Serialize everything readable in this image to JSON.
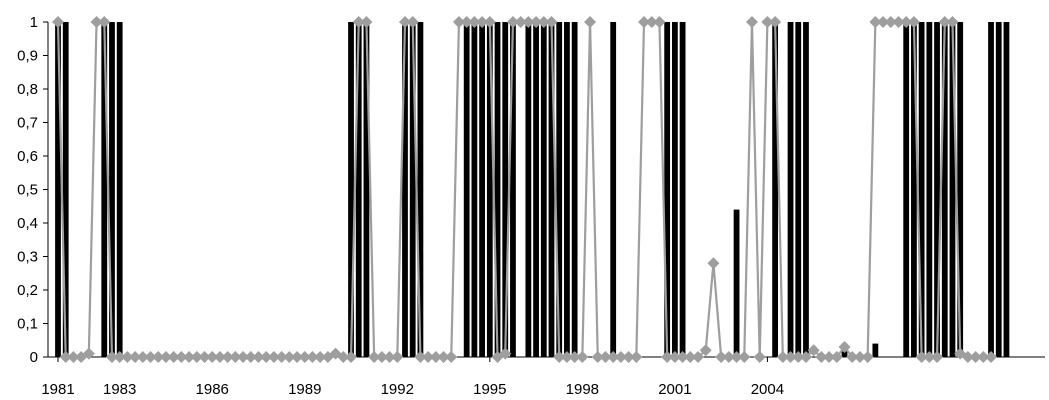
{
  "chart_data": {
    "type": "bar",
    "title": "",
    "xlabel": "",
    "ylabel": "",
    "ylim": [
      0,
      1
    ],
    "y_ticks": [
      "0",
      "0,1",
      "0,2",
      "0,3",
      "0,4",
      "0,5",
      "0,6",
      "0,7",
      "0,8",
      "0,9",
      "1"
    ],
    "x_tick_labels": [
      {
        "label": "1981",
        "index": 0
      },
      {
        "label": "1983",
        "index": 8
      },
      {
        "label": "1986",
        "index": 20
      },
      {
        "label": "1989",
        "index": 32
      },
      {
        "label": "1992",
        "index": 44
      },
      {
        "label": "1995",
        "index": 56
      },
      {
        "label": "1998",
        "index": 68
      },
      {
        "label": "2001",
        "index": 80
      },
      {
        "label": "2004",
        "index": 92
      }
    ],
    "grid": false,
    "legend": "none",
    "colors": {
      "bars": "#000000",
      "line": "#9e9e9e",
      "marker": "#9e9e9e"
    },
    "series": [
      {
        "type": "bar",
        "values": [
          1,
          1,
          0,
          0,
          0,
          0,
          1,
          1,
          1,
          0,
          0,
          0,
          0,
          0,
          0,
          0,
          0,
          0,
          0,
          0,
          0,
          0,
          0,
          0,
          0,
          0,
          0,
          0,
          0,
          0,
          0,
          0,
          0,
          0,
          0,
          0,
          0,
          0,
          1,
          1,
          1,
          0,
          0,
          0,
          0,
          1,
          1,
          1,
          0,
          0,
          0,
          0,
          0,
          1,
          1,
          1,
          1,
          1,
          1,
          1,
          0,
          1,
          1,
          1,
          1,
          1,
          1,
          1,
          0,
          0,
          0,
          0,
          1,
          0,
          0,
          0,
          0,
          0,
          0,
          1,
          1,
          1,
          0,
          0,
          0,
          0,
          0,
          0,
          0.44,
          0,
          0,
          0,
          0,
          1,
          0,
          1,
          1,
          1,
          0,
          0,
          0,
          0,
          0.04,
          0,
          0,
          0,
          0.04,
          0,
          0,
          0,
          1,
          1,
          1,
          1,
          1,
          1,
          1,
          1,
          0,
          0,
          0,
          1,
          1,
          1,
          0,
          0,
          0,
          0,
          0
        ]
      },
      {
        "type": "line",
        "values": [
          1,
          0,
          0,
          0,
          0.01,
          1,
          1,
          0,
          0,
          0,
          0,
          0,
          0,
          0,
          0,
          0,
          0,
          0,
          0,
          0,
          0,
          0,
          0,
          0,
          0,
          0,
          0,
          0,
          0,
          0,
          0,
          0,
          0,
          0,
          0,
          0,
          0.01,
          0,
          0,
          1,
          1,
          0,
          0,
          0,
          0,
          1,
          1,
          0,
          0,
          0,
          0,
          0,
          1,
          1,
          1,
          1,
          1,
          0,
          0.01,
          1,
          1,
          1,
          1,
          1,
          1,
          0,
          0,
          0,
          0,
          1,
          0,
          0,
          0,
          0,
          0,
          0,
          1,
          1,
          1,
          0,
          0,
          0,
          0,
          0,
          0.02,
          0.28,
          0,
          0,
          0,
          0,
          1,
          0,
          1,
          1,
          0,
          0,
          0,
          0,
          0.02,
          0,
          0,
          0,
          0.03,
          0,
          0,
          0,
          1,
          1,
          1,
          1,
          1,
          1,
          0,
          0,
          0,
          1,
          1,
          0.01,
          0,
          0,
          0,
          0
        ]
      }
    ]
  }
}
